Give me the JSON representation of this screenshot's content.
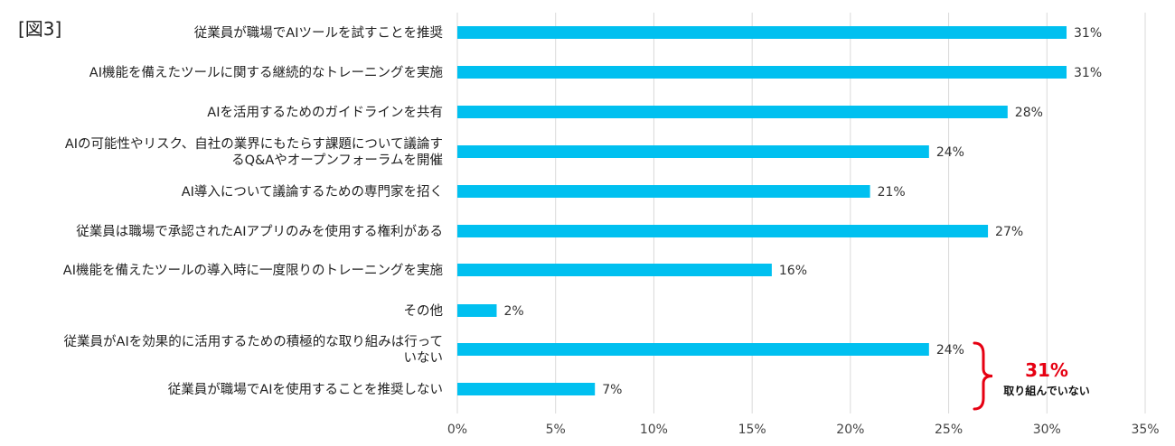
{
  "figure_label": "[図3]",
  "chart_data": {
    "type": "bar",
    "orientation": "horizontal",
    "categories": [
      [
        "従業員が職場でAIツールを試すことを推奨"
      ],
      [
        "AI機能を備えたツールに関する継続的なトレーニングを実施"
      ],
      [
        "AIを活用するためのガイドラインを共有"
      ],
      [
        "AIの可能性やリスク、自社の業界にもたらす課題について議論す",
        "るQ&Aやオープンフォーラムを開催"
      ],
      [
        "AI導入について議論するための専門家を招く"
      ],
      [
        "従業員は職場で承認されたAIアプリのみを使用する権利がある"
      ],
      [
        "AI機能を備えたツールの導入時に一度限りのトレーニングを実施"
      ],
      [
        "その他"
      ],
      [
        "従業員がAIを効果的に活用するための積極的な取り組みは行って",
        "いない"
      ],
      [
        "従業員が職場でAIを使用することを推奨しない"
      ]
    ],
    "values": [
      31,
      31,
      28,
      24,
      21,
      27,
      16,
      2,
      24,
      7
    ],
    "value_labels": [
      "31%",
      "31%",
      "28%",
      "24%",
      "21%",
      "27%",
      "16%",
      "2%",
      "24%",
      "7%"
    ],
    "xlim": [
      0,
      35
    ],
    "xticks": [
      0,
      5,
      10,
      15,
      20,
      25,
      30,
      35
    ],
    "xtick_labels": [
      "0%",
      "5%",
      "10%",
      "15%",
      "20%",
      "25%",
      "30%",
      "35%"
    ],
    "grid": "vertical",
    "bar_color": "#00c0f0",
    "annotation": {
      "value": "31%",
      "text": "取り組んでいない",
      "color": "#e60012"
    }
  }
}
